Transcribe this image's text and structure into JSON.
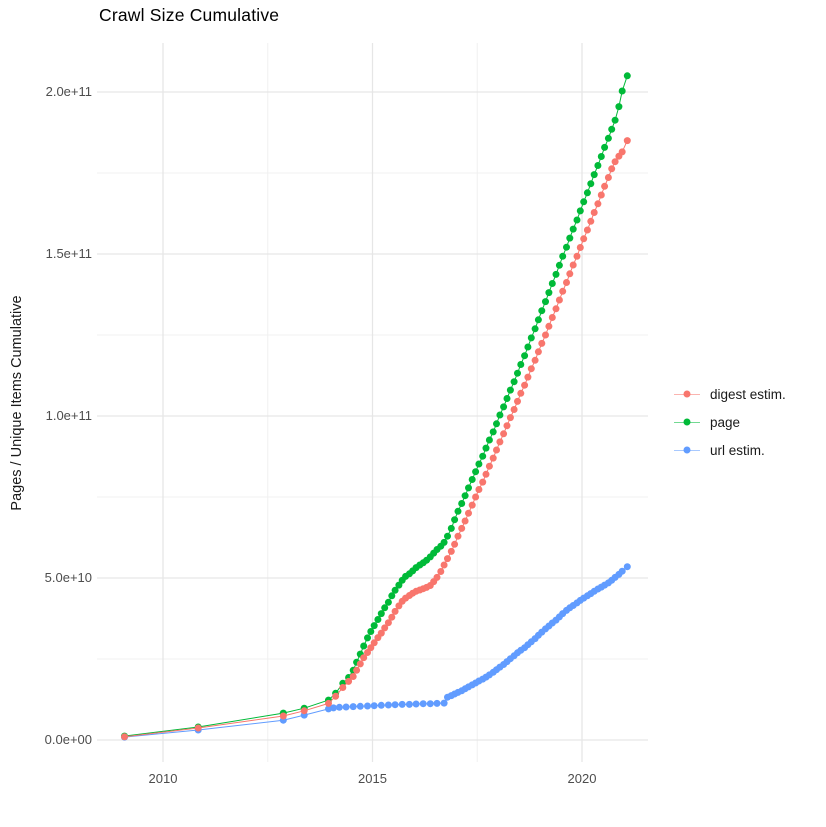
{
  "title": "Crawl Size Cumulative",
  "y_axis": {
    "label": "Pages / Unique Items Cumulative",
    "tick_labels": [
      "0.0e+00",
      "5.0e+10",
      "1.0e+11",
      "1.5e+11",
      "2.0e+11"
    ],
    "tick_values_e9": [
      0,
      50,
      100,
      150,
      200
    ],
    "minor_values_e9": [
      25,
      75,
      125,
      175
    ]
  },
  "x_axis": {
    "tick_labels": [
      "2010",
      "2015",
      "2020"
    ],
    "tick_values": [
      2010,
      2015,
      2020
    ],
    "minor_values": [
      2012.5,
      2017.5
    ]
  },
  "legend": {
    "position": "right",
    "items": [
      {
        "label": "digest estim.",
        "color": "#F8766D"
      },
      {
        "label": "page",
        "color": "#00BA38"
      },
      {
        "label": "url estim.",
        "color": "#619CFF"
      }
    ]
  },
  "colors": {
    "background": "#ffffff",
    "grid_major": "#e6e6e6",
    "grid_minor": "#f0f0f0",
    "axis_text": "#4d4d4d",
    "digest": "#F8766D",
    "page": "#00BA38",
    "url": "#619CFF"
  },
  "chart_data": {
    "type": "scatter",
    "title": "Crawl Size Cumulative",
    "xlabel": "",
    "ylabel": "Pages / Unique Items Cumulative",
    "x_unit": "year",
    "y_unit": "count (values in billions, 1 = 1e9)",
    "xlim": [
      2008.4,
      2021.6
    ],
    "ylim_e9": [
      0,
      215
    ],
    "grid": true,
    "legend_position": "right",
    "marker_radius_px": 3.5,
    "series": [
      {
        "name": "page",
        "color": "#00BA38",
        "points": [
          [
            2009.08,
            1.2
          ],
          [
            2010.84,
            4.0
          ],
          [
            2012.87,
            8.3
          ],
          [
            2013.37,
            9.8
          ],
          [
            2013.95,
            12.3
          ],
          [
            2014.12,
            14.4
          ],
          [
            2014.29,
            17.5
          ],
          [
            2014.43,
            19.3
          ],
          [
            2014.54,
            21.5
          ],
          [
            2014.62,
            24.0
          ],
          [
            2014.71,
            26.5
          ],
          [
            2014.79,
            29.0
          ],
          [
            2014.88,
            31.5
          ],
          [
            2014.96,
            33.5
          ],
          [
            2015.04,
            35.3
          ],
          [
            2015.13,
            37.2
          ],
          [
            2015.21,
            39.0
          ],
          [
            2015.29,
            40.8
          ],
          [
            2015.38,
            42.5
          ],
          [
            2015.46,
            44.5
          ],
          [
            2015.54,
            46.2
          ],
          [
            2015.63,
            47.8
          ],
          [
            2015.71,
            49.3
          ],
          [
            2015.79,
            50.5
          ],
          [
            2015.88,
            51.3
          ],
          [
            2015.96,
            52.2
          ],
          [
            2016.04,
            53.2
          ],
          [
            2016.13,
            54.0
          ],
          [
            2016.21,
            54.7
          ],
          [
            2016.29,
            55.5
          ],
          [
            2016.38,
            56.5
          ],
          [
            2016.46,
            57.7
          ],
          [
            2016.54,
            58.8
          ],
          [
            2016.63,
            59.8
          ],
          [
            2016.71,
            61.0
          ],
          [
            2016.79,
            62.9
          ],
          [
            2016.88,
            65.3
          ],
          [
            2016.96,
            68.0
          ],
          [
            2017.04,
            70.6
          ],
          [
            2017.13,
            73.0
          ],
          [
            2017.21,
            75.4
          ],
          [
            2017.29,
            77.8
          ],
          [
            2017.38,
            80.4
          ],
          [
            2017.46,
            82.8
          ],
          [
            2017.54,
            85.2
          ],
          [
            2017.63,
            87.6
          ],
          [
            2017.71,
            90.1
          ],
          [
            2017.79,
            92.6
          ],
          [
            2017.88,
            95.1
          ],
          [
            2017.96,
            97.6
          ],
          [
            2018.04,
            100.3
          ],
          [
            2018.13,
            102.8
          ],
          [
            2018.21,
            105.4
          ],
          [
            2018.29,
            108.0
          ],
          [
            2018.38,
            110.6
          ],
          [
            2018.46,
            113.2
          ],
          [
            2018.54,
            115.9
          ],
          [
            2018.63,
            118.6
          ],
          [
            2018.71,
            121.3
          ],
          [
            2018.79,
            124.1
          ],
          [
            2018.88,
            126.9
          ],
          [
            2018.96,
            129.7
          ],
          [
            2019.04,
            132.5
          ],
          [
            2019.13,
            135.3
          ],
          [
            2019.21,
            138.1
          ],
          [
            2019.29,
            140.9
          ],
          [
            2019.38,
            143.7
          ],
          [
            2019.46,
            146.5
          ],
          [
            2019.54,
            149.3
          ],
          [
            2019.63,
            152.1
          ],
          [
            2019.71,
            154.9
          ],
          [
            2019.79,
            157.7
          ],
          [
            2019.88,
            160.5
          ],
          [
            2019.96,
            163.3
          ],
          [
            2020.04,
            166.1
          ],
          [
            2020.13,
            168.9
          ],
          [
            2020.21,
            171.7
          ],
          [
            2020.29,
            174.5
          ],
          [
            2020.38,
            177.3
          ],
          [
            2020.46,
            180.1
          ],
          [
            2020.54,
            182.9
          ],
          [
            2020.63,
            185.7
          ],
          [
            2020.71,
            188.5
          ],
          [
            2020.79,
            191.3
          ],
          [
            2020.88,
            195.5
          ],
          [
            2020.96,
            200.3
          ],
          [
            2021.08,
            205.0
          ]
        ]
      },
      {
        "name": "url estim.",
        "color": "#619CFF",
        "points": [
          [
            2009.08,
            0.9
          ],
          [
            2010.84,
            3.1
          ],
          [
            2012.87,
            6.1
          ],
          [
            2013.37,
            7.7
          ],
          [
            2013.95,
            9.6
          ],
          [
            2014.07,
            9.9
          ],
          [
            2014.21,
            10.1
          ],
          [
            2014.37,
            10.2
          ],
          [
            2014.54,
            10.3
          ],
          [
            2014.71,
            10.4
          ],
          [
            2014.88,
            10.5
          ],
          [
            2015.04,
            10.6
          ],
          [
            2015.21,
            10.7
          ],
          [
            2015.38,
            10.8
          ],
          [
            2015.54,
            10.9
          ],
          [
            2015.71,
            11.0
          ],
          [
            2015.88,
            11.0
          ],
          [
            2016.04,
            11.1
          ],
          [
            2016.21,
            11.2
          ],
          [
            2016.38,
            11.2
          ],
          [
            2016.54,
            11.3
          ],
          [
            2016.71,
            11.4
          ],
          [
            2016.79,
            13.2
          ],
          [
            2016.88,
            13.7
          ],
          [
            2016.96,
            14.2
          ],
          [
            2017.04,
            14.7
          ],
          [
            2017.13,
            15.2
          ],
          [
            2017.21,
            15.8
          ],
          [
            2017.29,
            16.4
          ],
          [
            2017.38,
            17.0
          ],
          [
            2017.46,
            17.6
          ],
          [
            2017.54,
            18.2
          ],
          [
            2017.63,
            18.8
          ],
          [
            2017.71,
            19.4
          ],
          [
            2017.79,
            20.1
          ],
          [
            2017.88,
            20.9
          ],
          [
            2017.96,
            21.7
          ],
          [
            2018.04,
            22.5
          ],
          [
            2018.13,
            23.3
          ],
          [
            2018.21,
            24.2
          ],
          [
            2018.29,
            25.1
          ],
          [
            2018.38,
            26.0
          ],
          [
            2018.46,
            26.9
          ],
          [
            2018.54,
            27.7
          ],
          [
            2018.63,
            28.5
          ],
          [
            2018.71,
            29.4
          ],
          [
            2018.79,
            30.3
          ],
          [
            2018.88,
            31.3
          ],
          [
            2018.96,
            32.3
          ],
          [
            2019.04,
            33.3
          ],
          [
            2019.13,
            34.3
          ],
          [
            2019.21,
            35.2
          ],
          [
            2019.29,
            36.1
          ],
          [
            2019.38,
            37.0
          ],
          [
            2019.46,
            38.0
          ],
          [
            2019.54,
            39.0
          ],
          [
            2019.63,
            40.0
          ],
          [
            2019.71,
            40.8
          ],
          [
            2019.79,
            41.5
          ],
          [
            2019.88,
            42.3
          ],
          [
            2019.96,
            43.1
          ],
          [
            2020.04,
            43.8
          ],
          [
            2020.13,
            44.5
          ],
          [
            2020.21,
            45.2
          ],
          [
            2020.29,
            45.9
          ],
          [
            2020.38,
            46.6
          ],
          [
            2020.46,
            47.2
          ],
          [
            2020.54,
            47.8
          ],
          [
            2020.63,
            48.5
          ],
          [
            2020.71,
            49.3
          ],
          [
            2020.79,
            50.2
          ],
          [
            2020.88,
            51.1
          ],
          [
            2020.96,
            52.1
          ],
          [
            2021.08,
            53.5
          ]
        ]
      },
      {
        "name": "digest estim.",
        "color": "#F8766D",
        "points": [
          [
            2009.08,
            1.0
          ],
          [
            2010.84,
            3.7
          ],
          [
            2012.87,
            7.4
          ],
          [
            2013.37,
            9.0
          ],
          [
            2013.95,
            11.3
          ],
          [
            2014.12,
            13.5
          ],
          [
            2014.29,
            16.2
          ],
          [
            2014.43,
            18.1
          ],
          [
            2014.54,
            19.6
          ],
          [
            2014.62,
            21.5
          ],
          [
            2014.71,
            23.5
          ],
          [
            2014.79,
            25.4
          ],
          [
            2014.88,
            27.0
          ],
          [
            2014.96,
            28.5
          ],
          [
            2015.04,
            30.0
          ],
          [
            2015.13,
            31.6
          ],
          [
            2015.21,
            33.0
          ],
          [
            2015.29,
            34.6
          ],
          [
            2015.38,
            36.2
          ],
          [
            2015.46,
            37.9
          ],
          [
            2015.54,
            39.7
          ],
          [
            2015.63,
            41.4
          ],
          [
            2015.71,
            42.8
          ],
          [
            2015.79,
            43.8
          ],
          [
            2015.88,
            44.6
          ],
          [
            2015.96,
            45.3
          ],
          [
            2016.04,
            45.9
          ],
          [
            2016.13,
            46.3
          ],
          [
            2016.21,
            46.7
          ],
          [
            2016.29,
            47.1
          ],
          [
            2016.38,
            47.7
          ],
          [
            2016.46,
            48.9
          ],
          [
            2016.54,
            50.2
          ],
          [
            2016.63,
            52.0
          ],
          [
            2016.71,
            54.0
          ],
          [
            2016.79,
            56.0
          ],
          [
            2016.88,
            58.2
          ],
          [
            2016.96,
            60.4
          ],
          [
            2017.04,
            62.9
          ],
          [
            2017.13,
            65.3
          ],
          [
            2017.21,
            67.6
          ],
          [
            2017.29,
            70.0
          ],
          [
            2017.38,
            72.5
          ],
          [
            2017.46,
            75.0
          ],
          [
            2017.54,
            77.3
          ],
          [
            2017.63,
            79.6
          ],
          [
            2017.71,
            82.0
          ],
          [
            2017.79,
            84.5
          ],
          [
            2017.88,
            87.0
          ],
          [
            2017.96,
            89.5
          ],
          [
            2018.04,
            92.0
          ],
          [
            2018.13,
            94.5
          ],
          [
            2018.21,
            97.0
          ],
          [
            2018.29,
            99.5
          ],
          [
            2018.38,
            102.0
          ],
          [
            2018.46,
            104.5
          ],
          [
            2018.54,
            107.0
          ],
          [
            2018.63,
            109.5
          ],
          [
            2018.71,
            112.0
          ],
          [
            2018.79,
            114.6
          ],
          [
            2018.88,
            117.2
          ],
          [
            2018.96,
            119.8
          ],
          [
            2019.04,
            122.4
          ],
          [
            2019.13,
            125.0
          ],
          [
            2019.21,
            127.7
          ],
          [
            2019.29,
            130.4
          ],
          [
            2019.38,
            133.1
          ],
          [
            2019.46,
            135.8
          ],
          [
            2019.54,
            138.5
          ],
          [
            2019.63,
            141.2
          ],
          [
            2019.71,
            143.9
          ],
          [
            2019.79,
            146.6
          ],
          [
            2019.88,
            149.3
          ],
          [
            2019.96,
            152.0
          ],
          [
            2020.04,
            154.7
          ],
          [
            2020.13,
            157.4
          ],
          [
            2020.21,
            160.1
          ],
          [
            2020.29,
            162.8
          ],
          [
            2020.38,
            165.5
          ],
          [
            2020.46,
            168.2
          ],
          [
            2020.54,
            170.9
          ],
          [
            2020.63,
            173.6
          ],
          [
            2020.71,
            176.3
          ],
          [
            2020.79,
            178.5
          ],
          [
            2020.88,
            180.2
          ],
          [
            2020.96,
            181.5
          ],
          [
            2021.08,
            185.0
          ]
        ]
      }
    ]
  }
}
